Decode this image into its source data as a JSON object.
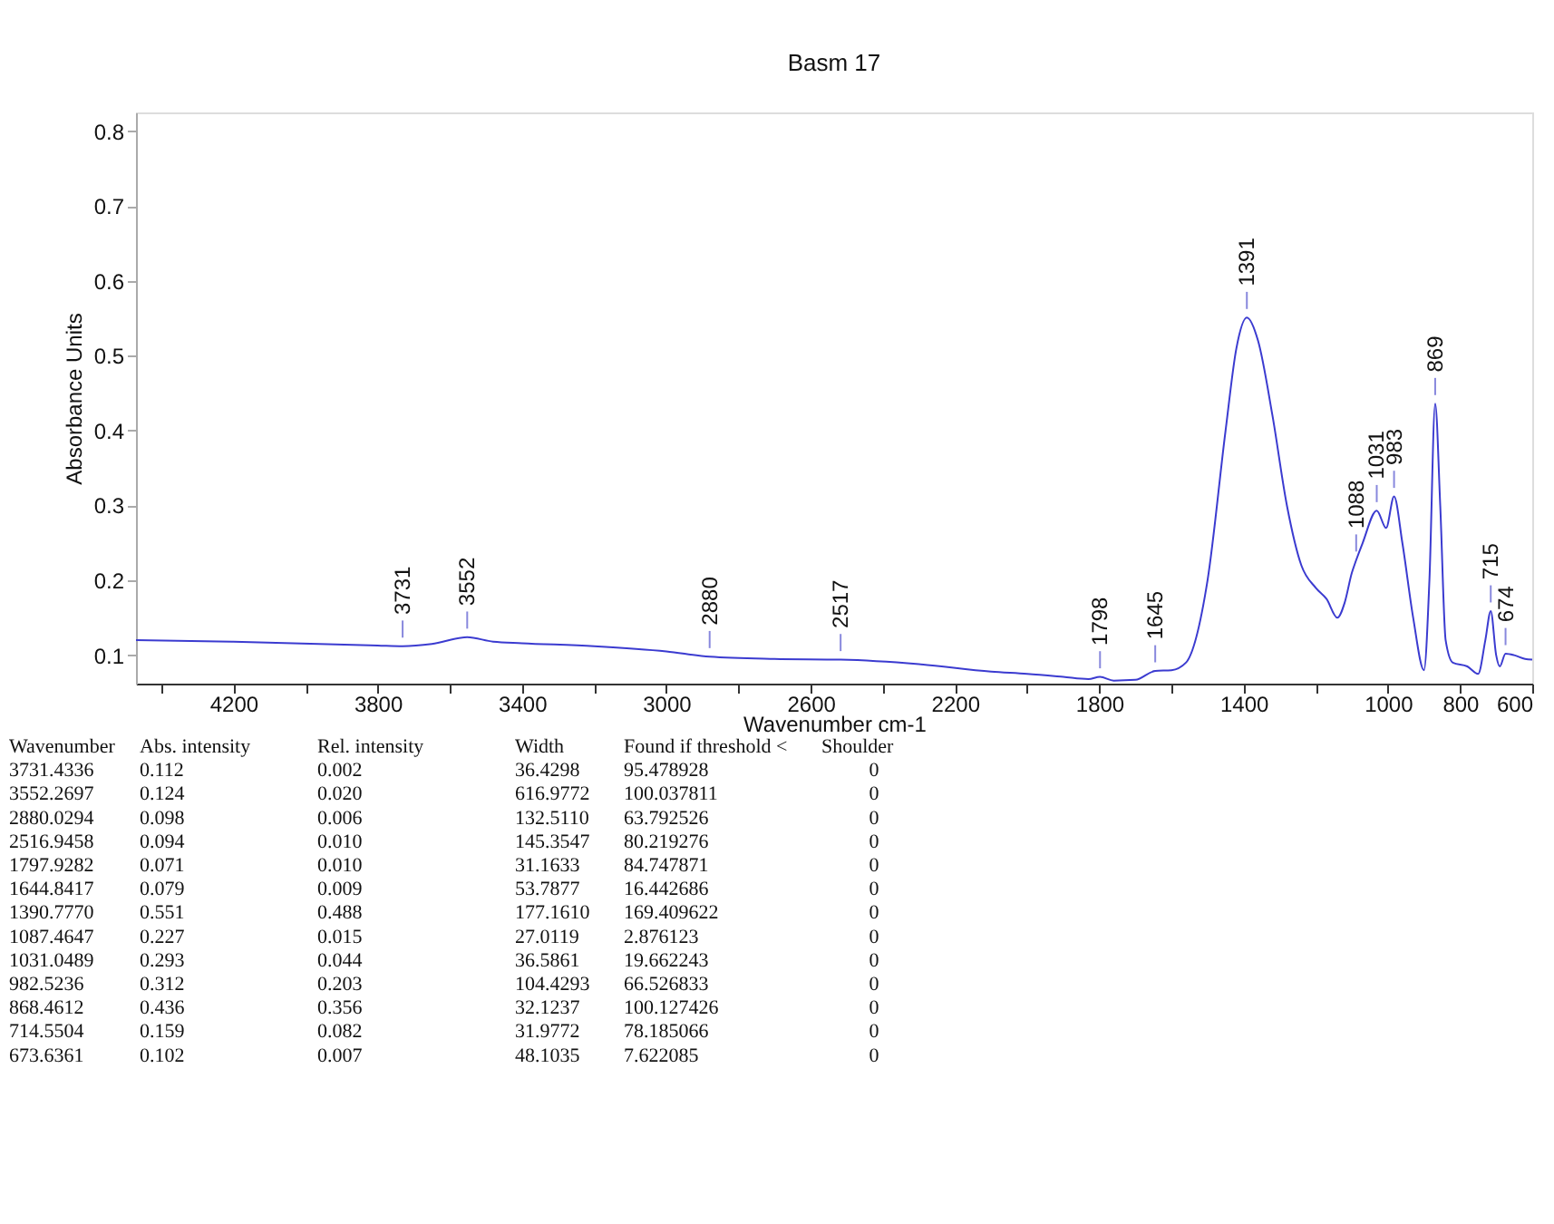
{
  "chart_data": {
    "type": "line",
    "title": "Basm 17",
    "xlabel": "Wavenumber cm-1",
    "ylabel": "Absorbance Units",
    "xlim": [
      4470,
      600
    ],
    "ylim": [
      0.062,
      0.825
    ],
    "xticks": [
      {
        "value": 4400,
        "label": null
      },
      4200,
      {
        "value": 4000,
        "label": null
      },
      3800,
      {
        "value": 3600,
        "label": null
      },
      3400,
      {
        "value": 3200,
        "label": null
      },
      3000,
      {
        "value": 2800,
        "label": null
      },
      2600,
      {
        "value": 2400,
        "label": null
      },
      2200,
      {
        "value": 2000,
        "label": null
      },
      1800,
      {
        "value": 1600,
        "label": null
      },
      1400,
      {
        "value": 1200,
        "label": null
      },
      1000,
      800,
      600
    ],
    "yticks": [
      0.1,
      0.2,
      0.3,
      0.4,
      0.5,
      0.6,
      0.7,
      0.8
    ],
    "grid": false,
    "marker": "none",
    "line_style": "solid",
    "series": [
      {
        "color": "#3b3bd0",
        "x": [
          4470,
          4200,
          3800,
          3731,
          3650,
          3552,
          3480,
          3400,
          3200,
          3000,
          2880,
          2700,
          2517,
          2300,
          2100,
          2000,
          1900,
          1830,
          1798,
          1760,
          1700,
          1645,
          1600,
          1560,
          1500,
          1450,
          1420,
          1391,
          1360,
          1320,
          1280,
          1240,
          1200,
          1170,
          1140,
          1120,
          1100,
          1088,
          1070,
          1031,
          1005,
          983,
          960,
          930,
          900,
          885,
          869,
          855,
          840,
          820,
          780,
          750,
          730,
          715,
          700,
          690,
          674,
          650,
          620,
          600
        ],
        "values": [
          0.12,
          0.118,
          0.113,
          0.112,
          0.115,
          0.124,
          0.118,
          0.116,
          0.112,
          0.105,
          0.098,
          0.095,
          0.094,
          0.088,
          0.078,
          0.075,
          0.071,
          0.068,
          0.071,
          0.066,
          0.067,
          0.079,
          0.08,
          0.09,
          0.2,
          0.4,
          0.51,
          0.551,
          0.52,
          0.42,
          0.3,
          0.22,
          0.19,
          0.175,
          0.15,
          0.17,
          0.21,
          0.227,
          0.25,
          0.293,
          0.27,
          0.312,
          0.25,
          0.15,
          0.08,
          0.2,
          0.436,
          0.3,
          0.12,
          0.09,
          0.085,
          0.075,
          0.12,
          0.159,
          0.1,
          0.085,
          0.102,
          0.1,
          0.095,
          0.094
        ]
      }
    ],
    "annotations": [
      {
        "text": "3731",
        "x": 3731,
        "y": 0.112
      },
      {
        "text": "3552",
        "x": 3552,
        "y": 0.124
      },
      {
        "text": "2880",
        "x": 2880,
        "y": 0.098
      },
      {
        "text": "2517",
        "x": 2517,
        "y": 0.094
      },
      {
        "text": "1798",
        "x": 1798,
        "y": 0.071
      },
      {
        "text": "1645",
        "x": 1645,
        "y": 0.079
      },
      {
        "text": "1391",
        "x": 1391,
        "y": 0.551
      },
      {
        "text": "1088",
        "x": 1088,
        "y": 0.227
      },
      {
        "text": "1031",
        "x": 1031,
        "y": 0.293
      },
      {
        "text": "983",
        "x": 983,
        "y": 0.312
      },
      {
        "text": "869",
        "x": 869,
        "y": 0.436
      },
      {
        "text": "715",
        "x": 715,
        "y": 0.159
      },
      {
        "text": "674",
        "x": 674,
        "y": 0.102
      },
      "Wavenumber  Abs. intensity  Rel. intensity  Width  Found if threshold <  Shoulder",
      "3731.4336  0.112  0.002  36.4298  95.478928  0",
      "3552.2697  0.124  0.020  616.9772  100.037811  0",
      "2880.0294  0.098  0.006  132.5110  63.792526  0",
      "2516.9458  0.094  0.010  145.3547  80.219276  0",
      "1797.9282  0.071  0.010  31.1633  84.747871  0",
      "1644.8417  0.079  0.009  53.7877  16.442686  0",
      "1390.7770  0.551  0.488  177.1610  169.409622  0",
      "1087.4647  0.227  0.015  27.0119  2.876123  0",
      "1031.0489  0.293  0.044  36.5861  19.662243  0",
      "982.5236  0.312  0.203  104.4293  66.526833  0",
      "868.4612  0.436  0.356  32.1237  100.127426  0",
      "714.5504  0.159  0.082  31.9772  78.185066  0",
      "673.6361  0.102  0.007  48.1035  7.622085  0"
    ]
  }
}
